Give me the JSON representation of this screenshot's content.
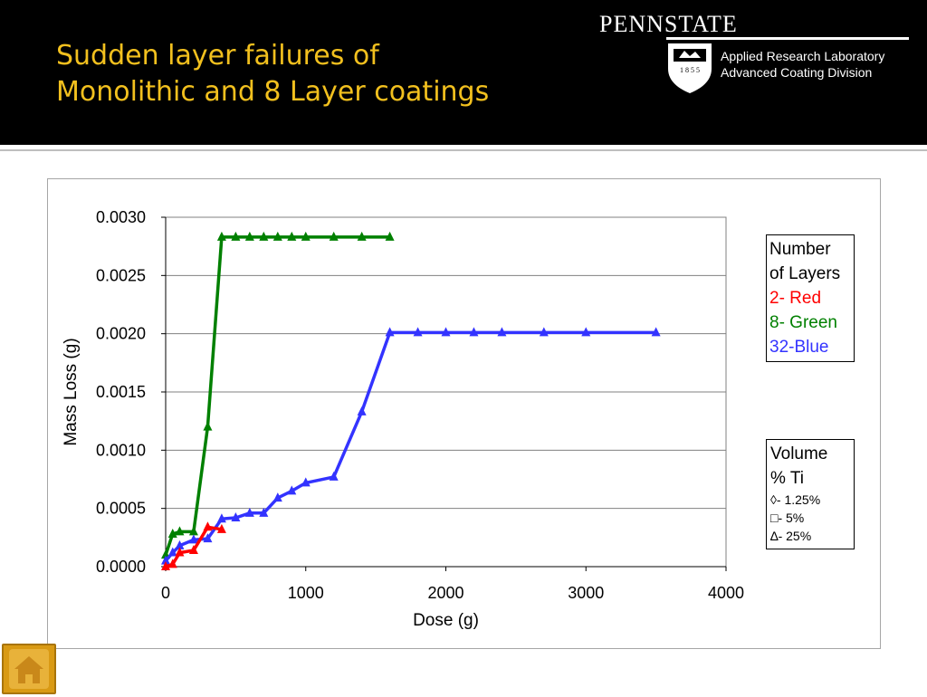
{
  "slide": {
    "title_line1": "Sudden layer failures of",
    "title_line2": "Monolithic and 8 Layer coatings",
    "logo_text": "PENNSTATE",
    "shield_year": "1 8 5 5",
    "lab_line1": "Applied Research Laboratory",
    "lab_line2": "Advanced Coating Division"
  },
  "legend_layers": {
    "heading1": "Number",
    "heading2": "of Layers",
    "red": "2- Red",
    "green": "8- Green",
    "blue": "32-Blue"
  },
  "legend_ti": {
    "heading1": "Volume",
    "heading2": "% Ti",
    "diamond": "◊- 1.25%",
    "square": "□- 5%",
    "triangle": "∆- 25%"
  },
  "colors": {
    "title": "#f2c01e",
    "red": "#ff0000",
    "green": "#008000",
    "blue": "#3333ff",
    "home_button": "#d99a14"
  },
  "icons": {
    "home": "home-icon",
    "shield": "penn-state-shield-icon"
  },
  "chart_data": {
    "type": "line",
    "xlabel": "Dose (g)",
    "ylabel": "Mass Loss (g)",
    "xlim": [
      0,
      4000
    ],
    "ylim": [
      0,
      0.003
    ],
    "xticks": [
      "0",
      "1000",
      "2000",
      "3000",
      "4000"
    ],
    "yticks": [
      "0.0000",
      "0.0005",
      "0.0010",
      "0.0015",
      "0.0020",
      "0.0025",
      "0.0030"
    ],
    "grid": "horizontal",
    "marker": "triangle",
    "series": [
      {
        "color": "#008000",
        "x": [
          0,
          50,
          100,
          200,
          300,
          400,
          500,
          600,
          700,
          800,
          900,
          1000,
          1200,
          1400,
          1600
        ],
        "y": [
          0.0001,
          0.00028,
          0.0003,
          0.0003,
          0.0012,
          0.00283,
          0.00283,
          0.00283,
          0.00283,
          0.00283,
          0.00283,
          0.00283,
          0.00283,
          0.00283,
          0.00283
        ]
      },
      {
        "color": "#3333ff",
        "x": [
          0,
          50,
          100,
          200,
          300,
          400,
          500,
          600,
          700,
          800,
          900,
          1000,
          1200,
          1400,
          1600,
          1800,
          2000,
          2200,
          2400,
          2700,
          3000,
          3500
        ],
        "y": [
          5e-05,
          0.00012,
          0.00018,
          0.00023,
          0.00024,
          0.00041,
          0.00042,
          0.00046,
          0.00046,
          0.00059,
          0.00065,
          0.00072,
          0.00077,
          0.00133,
          0.00201,
          0.00201,
          0.00201,
          0.00201,
          0.00201,
          0.00201,
          0.00201,
          0.00201
        ]
      },
      {
        "color": "#ff0000",
        "x": [
          0,
          50,
          100,
          200,
          300,
          400
        ],
        "y": [
          0.0,
          2e-05,
          0.00012,
          0.00014,
          0.00034,
          0.00032
        ]
      }
    ]
  }
}
